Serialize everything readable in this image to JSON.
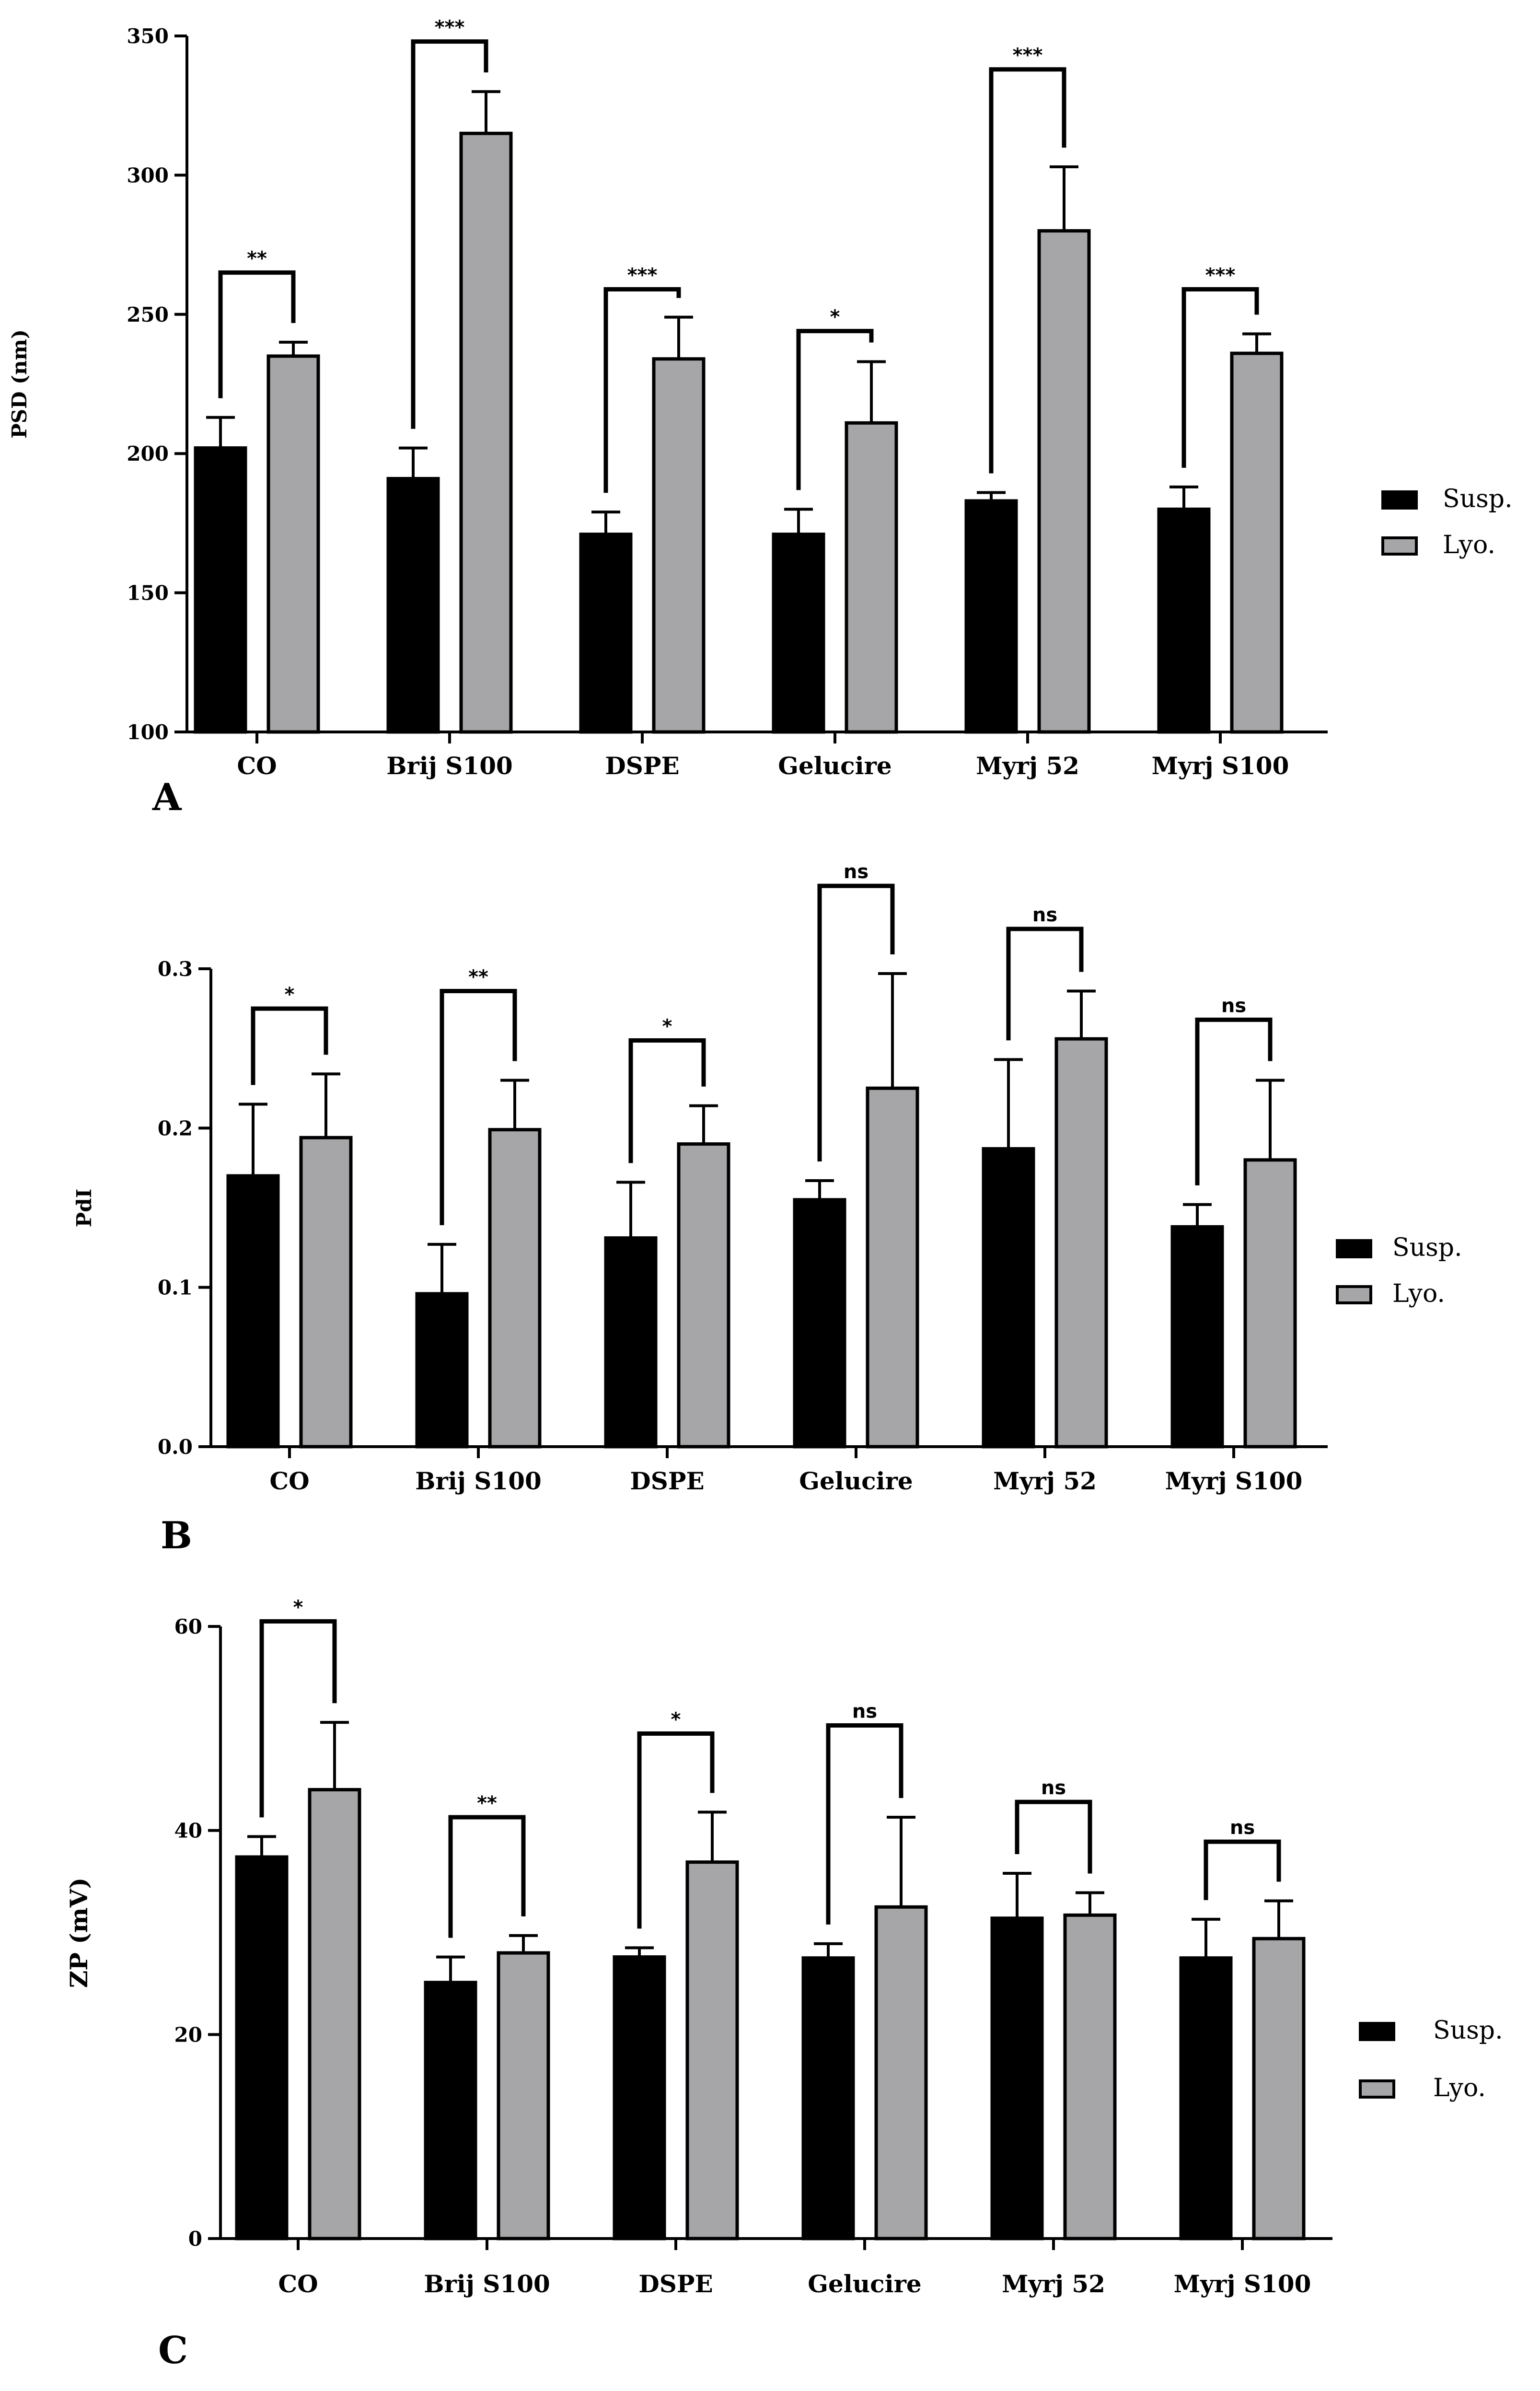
{
  "chart_data": [
    {
      "type": "bar",
      "panel": "A",
      "ylabel": "PSD (nm)",
      "ylim": [
        100,
        350
      ],
      "yticks": [
        100,
        150,
        200,
        250,
        300,
        350
      ],
      "categories": [
        "CO",
        "Brij S100",
        "DSPE",
        "Gelucire",
        "Myrj 52",
        "Myrj S100"
      ],
      "series": [
        {
          "name": "Susp.",
          "color": "#000000",
          "values": [
            202,
            191,
            171,
            171,
            183,
            180
          ],
          "errors": [
            11,
            11,
            8,
            9,
            3,
            8
          ]
        },
        {
          "name": "Lyo.",
          "color": "#a6a6a9",
          "values": [
            235,
            315,
            234,
            211,
            280,
            236
          ],
          "errors": [
            5,
            15,
            15,
            22,
            23,
            7
          ]
        }
      ],
      "significance": [
        "**",
        "***",
        "***",
        "*",
        "***",
        "***"
      ],
      "bracket_tops": [
        265,
        348,
        259,
        244,
        338,
        259
      ]
    },
    {
      "type": "bar",
      "panel": "B",
      "ylabel": "PdI",
      "ylim": [
        0,
        0.3
      ],
      "yticks": [
        0.0,
        0.1,
        0.2,
        0.3
      ],
      "categories": [
        "CO",
        "Brij S100",
        "DSPE",
        "Gelucire",
        "Myrj 52",
        "Myrj S100"
      ],
      "series": [
        {
          "name": "Susp.",
          "color": "#000000",
          "values": [
            0.17,
            0.096,
            0.131,
            0.155,
            0.187,
            0.138
          ],
          "errors": [
            0.045,
            0.031,
            0.035,
            0.012,
            0.056,
            0.014
          ]
        },
        {
          "name": "Lyo.",
          "color": "#a6a6a9",
          "values": [
            0.194,
            0.199,
            0.19,
            0.225,
            0.256,
            0.18
          ],
          "errors": [
            0.04,
            0.031,
            0.024,
            0.072,
            0.03,
            0.05
          ]
        }
      ],
      "significance": [
        "*",
        "**",
        "*",
        "ns",
        "ns",
        "ns"
      ],
      "bracket_tops": [
        0.275,
        0.286,
        0.255,
        0.352,
        0.325,
        0.268
      ]
    },
    {
      "type": "bar",
      "panel": "C",
      "ylabel": "ZP (mV)",
      "ylim": [
        0,
        60
      ],
      "yticks": [
        0,
        20,
        40,
        60
      ],
      "categories": [
        "CO",
        "Brij S100",
        "DSPE",
        "Gelucire",
        "Myrj 52",
        "Myrj S100"
      ],
      "series": [
        {
          "name": "Susp.",
          "color": "#000000",
          "values": [
            37.4,
            25.1,
            27.6,
            27.5,
            31.4,
            27.5
          ],
          "errors": [
            2.0,
            2.5,
            0.9,
            1.4,
            4.4,
            3.8
          ]
        },
        {
          "name": "Lyo.",
          "color": "#a6a6a9",
          "values": [
            44.0,
            28.0,
            36.9,
            32.5,
            31.7,
            29.4
          ],
          "errors": [
            6.6,
            1.7,
            4.9,
            8.8,
            2.2,
            3.7
          ]
        }
      ],
      "significance": [
        "*",
        "**",
        "*",
        "ns",
        "ns",
        "ns"
      ],
      "bracket_tops": [
        60.5,
        41.3,
        49.5,
        50.3,
        42.8,
        38.9
      ]
    }
  ]
}
